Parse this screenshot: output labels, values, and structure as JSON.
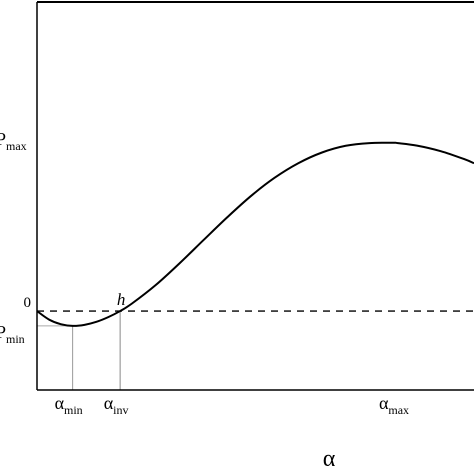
{
  "chart_data": {
    "type": "line",
    "xlabel": "α",
    "ylabel": "",
    "x_ticks": [
      {
        "main": "α",
        "sub": "min",
        "value": 0.75
      },
      {
        "main": "α",
        "sub": "inv",
        "value": 1.75
      },
      {
        "main": "α",
        "sub": "max",
        "value": 7.6
      }
    ],
    "y_ticks": [
      {
        "main": "P",
        "sub": "max",
        "value": 1.0
      },
      {
        "main": "0",
        "sub": "",
        "value": 0.0
      },
      {
        "main": "P",
        "sub": "min",
        "value": -0.088
      }
    ],
    "point_labels": [
      {
        "text": "h",
        "x": 1.75,
        "y": 0.0
      }
    ],
    "xlim": [
      0,
      9.2
    ],
    "ylim": [
      -0.47,
      1.84
    ],
    "grid": false,
    "legend": "none",
    "series": [
      {
        "style": "solid",
        "color": "#000000",
        "x": [
          0,
          0.25,
          0.5,
          0.75,
          1.0,
          1.25,
          1.5,
          1.75,
          2.0,
          2.5,
          3.0,
          3.5,
          4.0,
          4.5,
          5.0,
          5.5,
          6.0,
          6.5,
          7.0,
          7.5,
          7.6,
          8.0,
          8.5,
          9.0,
          9.2
        ],
        "y": [
          0.0,
          -0.05,
          -0.078,
          -0.088,
          -0.082,
          -0.064,
          -0.036,
          0.0,
          0.045,
          0.155,
          0.284,
          0.421,
          0.557,
          0.684,
          0.793,
          0.88,
          0.944,
          0.984,
          1.0,
          1.002,
          1.0,
          0.985,
          0.952,
          0.904,
          0.88
        ]
      }
    ],
    "reference_lines": [
      {
        "axis": "y",
        "value": 0.0,
        "style": "dashed",
        "color": "#000000"
      },
      {
        "axis": "x",
        "value": 0.75,
        "style": "solid",
        "color": "#999999"
      },
      {
        "axis": "x",
        "value": 1.75,
        "style": "solid",
        "color": "#888888"
      }
    ]
  }
}
